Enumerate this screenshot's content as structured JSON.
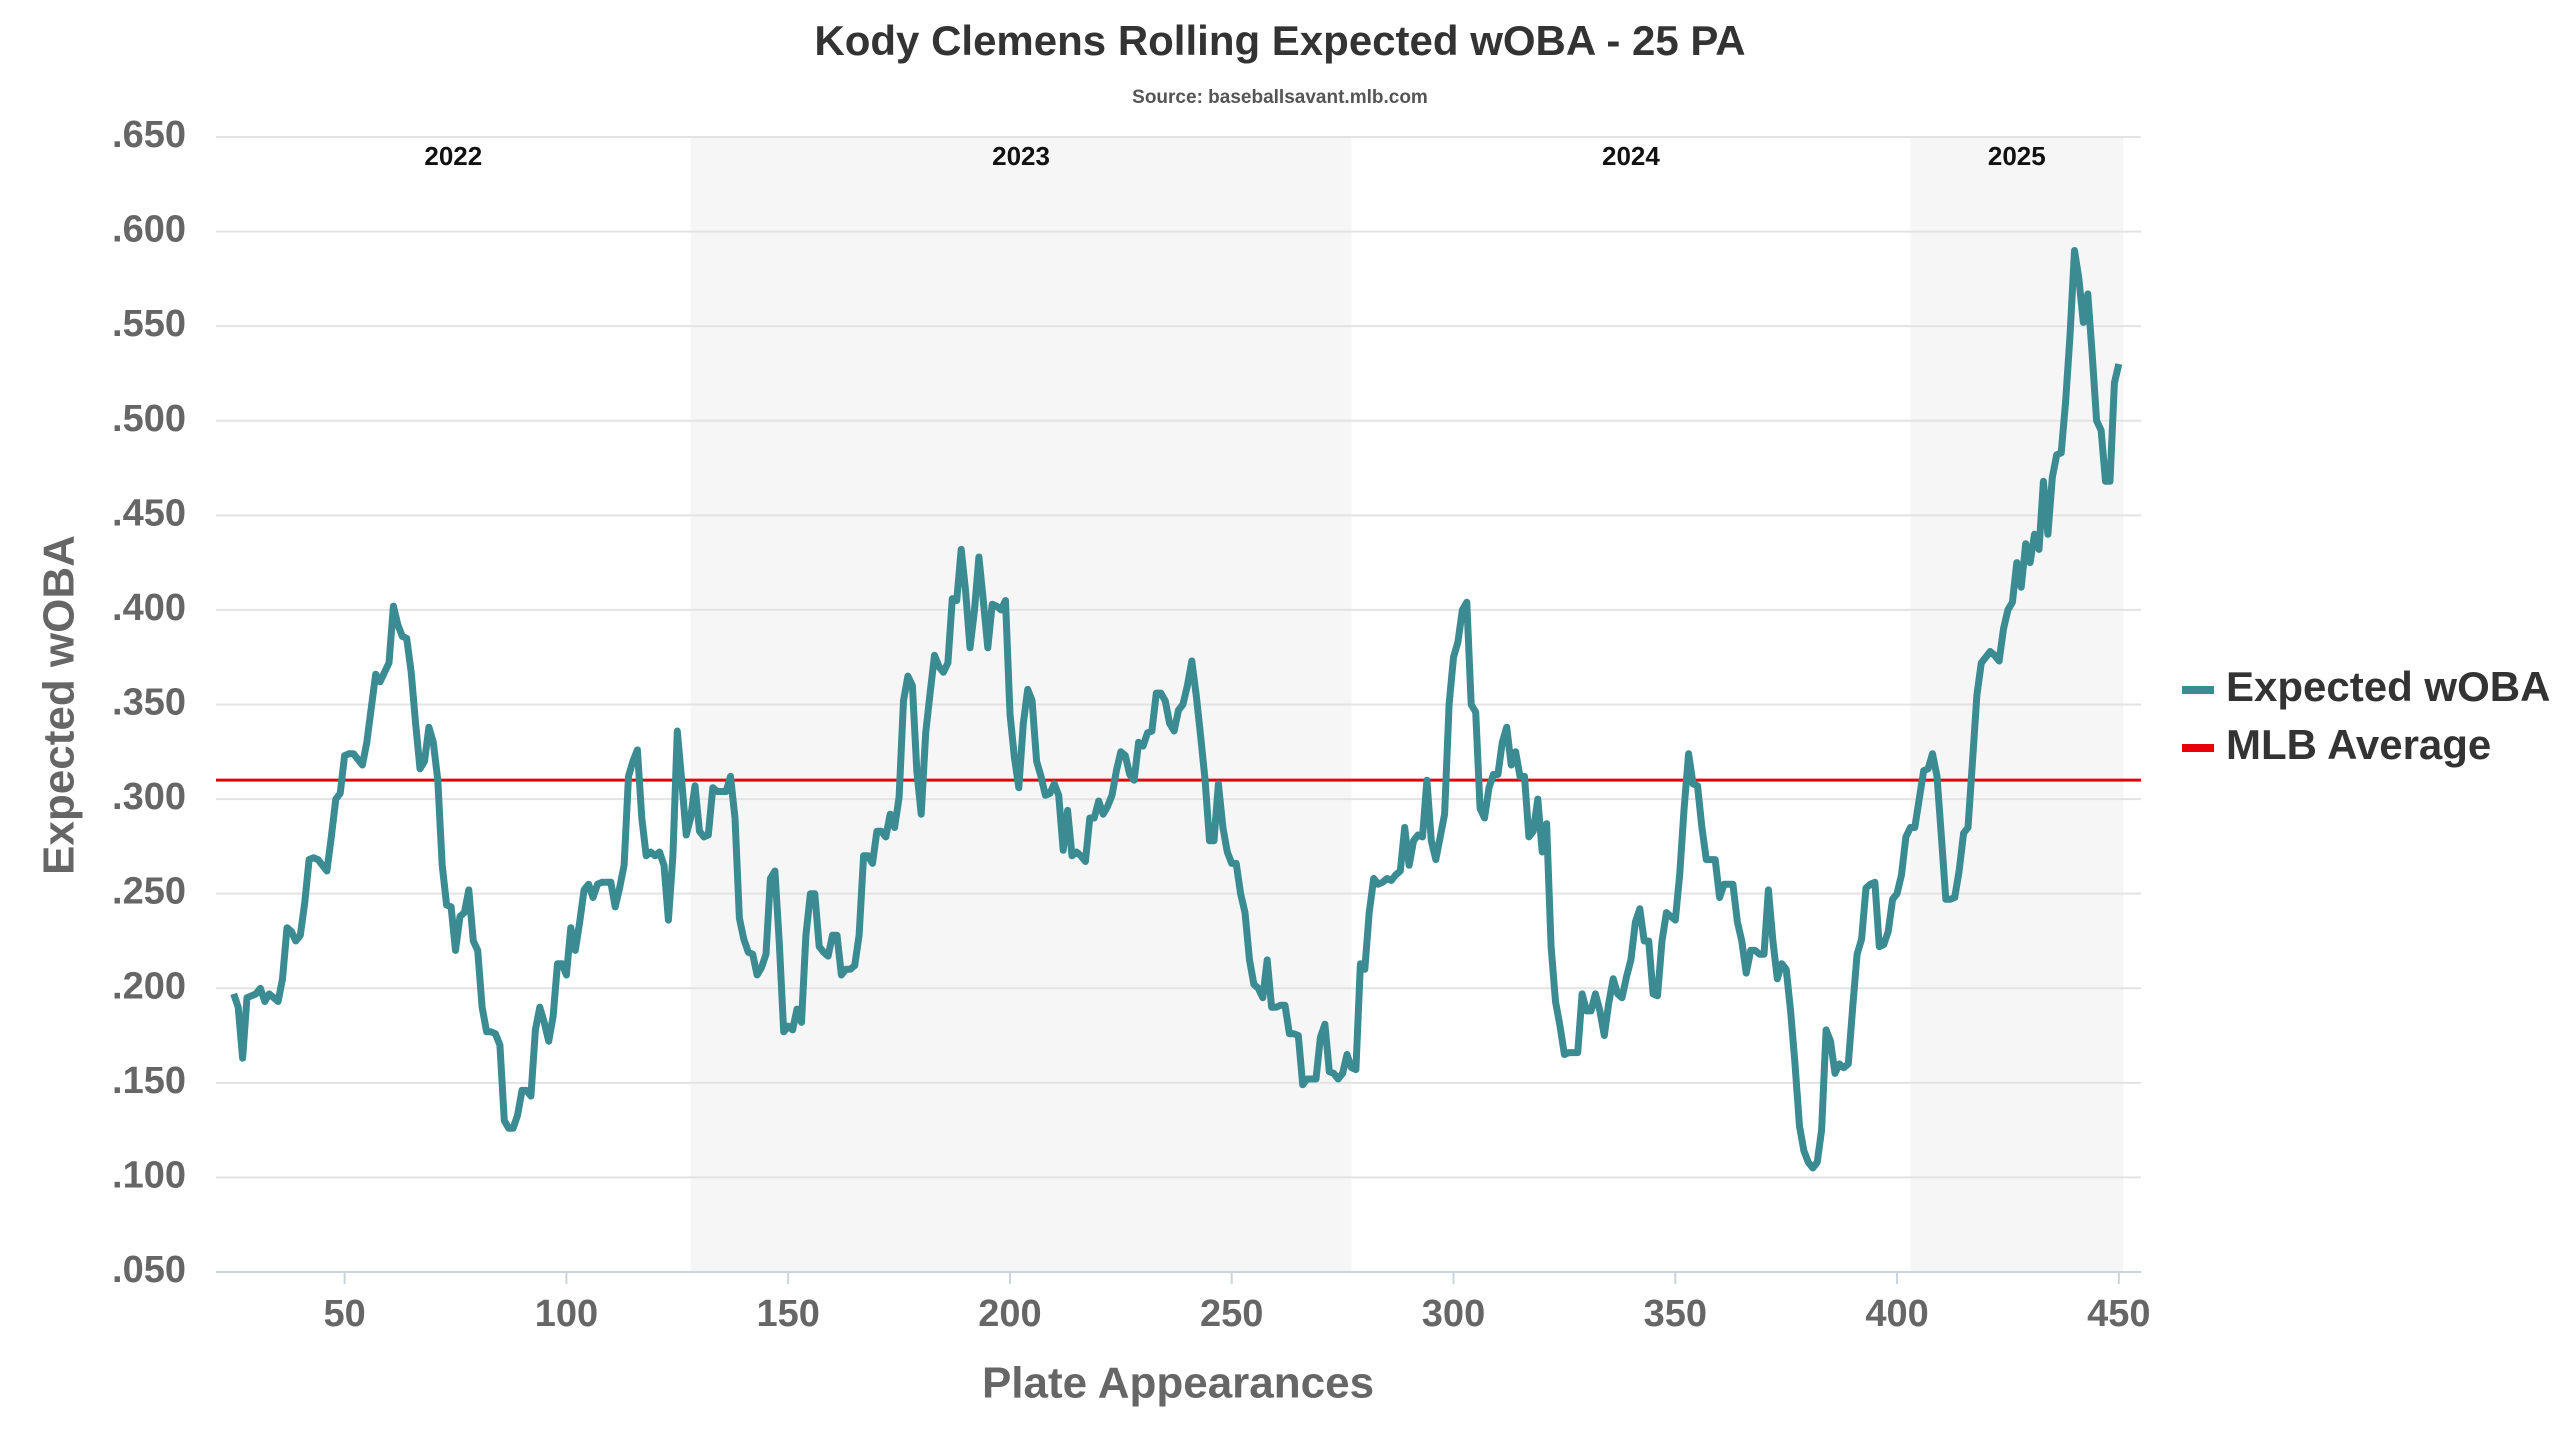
{
  "chart_data": {
    "type": "line",
    "title": "Kody Clemens Rolling Expected wOBA - 25 PA",
    "subtitle": "Source: baseballsavant.mlb.com",
    "xlabel": "Plate Appearances",
    "ylabel": "Expected wOBA",
    "xlim": [
      21,
      455
    ],
    "ylim": [
      0.05,
      0.65
    ],
    "xticks": [
      50,
      100,
      150,
      200,
      250,
      300,
      350,
      400,
      450
    ],
    "yticks": [
      {
        "value": 0.05,
        "label": ".050"
      },
      {
        "value": 0.1,
        "label": ".100"
      },
      {
        "value": 0.15,
        "label": ".150"
      },
      {
        "value": 0.2,
        "label": ".200"
      },
      {
        "value": 0.25,
        "label": ".250"
      },
      {
        "value": 0.3,
        "label": ".300"
      },
      {
        "value": 0.35,
        "label": ".350"
      },
      {
        "value": 0.4,
        "label": ".400"
      },
      {
        "value": 0.45,
        "label": ".450"
      },
      {
        "value": 0.5,
        "label": ".500"
      },
      {
        "value": 0.55,
        "label": ".550"
      },
      {
        "value": 0.6,
        "label": ".600"
      },
      {
        "value": 0.65,
        "label": ".650"
      }
    ],
    "grid": true,
    "legend": "right",
    "seasons": [
      {
        "label": "2022",
        "start": 21,
        "end": 128,
        "shaded": false
      },
      {
        "label": "2023",
        "start": 128,
        "end": 277,
        "shaded": true
      },
      {
        "label": "2024",
        "start": 277,
        "end": 403,
        "shaded": false
      },
      {
        "label": "2025",
        "start": 403,
        "end": 451,
        "shaded": true
      }
    ],
    "reference_lines": [
      {
        "name": "MLB Average",
        "value": 0.31,
        "color": "#e8000b"
      }
    ],
    "x": [
      25,
      26,
      27,
      28,
      29,
      30,
      31,
      32,
      33,
      34,
      35,
      36,
      37,
      38,
      39,
      40,
      41,
      42,
      43,
      44,
      45,
      46,
      47,
      48,
      49,
      50,
      51,
      52,
      53,
      54,
      55,
      56,
      57,
      58,
      59,
      60,
      61,
      62,
      63,
      64,
      65,
      66,
      67,
      68,
      69,
      70,
      71,
      72,
      73,
      74,
      75,
      76,
      77,
      78,
      79,
      80,
      81,
      82,
      83,
      84,
      85,
      86,
      87,
      88,
      89,
      90,
      91,
      92,
      93,
      94,
      95,
      96,
      97,
      98,
      99,
      100,
      101,
      102,
      103,
      104,
      105,
      106,
      107,
      108,
      109,
      110,
      111,
      112,
      113,
      114,
      115,
      116,
      117,
      118,
      119,
      120,
      121,
      122,
      123,
      124,
      125,
      126,
      127,
      128,
      129,
      130,
      131,
      132,
      133,
      134,
      135,
      136,
      137,
      138,
      139,
      140,
      141,
      142,
      143,
      144,
      145,
      146,
      147,
      148,
      149,
      150,
      151,
      152,
      153,
      154,
      155,
      156,
      157,
      158,
      159,
      160,
      161,
      162,
      163,
      164,
      165,
      166,
      167,
      168,
      169,
      170,
      171,
      172,
      173,
      174,
      175,
      176,
      177,
      178,
      179,
      180,
      181,
      182,
      183,
      184,
      185,
      186,
      187,
      188,
      189,
      190,
      191,
      192,
      193,
      194,
      195,
      196,
      197,
      198,
      199,
      200,
      201,
      202,
      203,
      204,
      205,
      206,
      207,
      208,
      209,
      210,
      211,
      212,
      213,
      214,
      215,
      216,
      217,
      218,
      219,
      220,
      221,
      222,
      223,
      224,
      225,
      226,
      227,
      228,
      229,
      230,
      231,
      232,
      233,
      234,
      235,
      236,
      237,
      238,
      239,
      240,
      241,
      242,
      243,
      244,
      245,
      246,
      247,
      248,
      249,
      250,
      251,
      252,
      253,
      254,
      255,
      256,
      257,
      258,
      259,
      260,
      261,
      262,
      263,
      264,
      265,
      266,
      267,
      268,
      269,
      270,
      271,
      272,
      273,
      274,
      275,
      276,
      277,
      278,
      279,
      280,
      281,
      282,
      283,
      284,
      285,
      286,
      287,
      288,
      289,
      290,
      291,
      292,
      293,
      294,
      295,
      296,
      297,
      298,
      299,
      300,
      301,
      302,
      303,
      304,
      305,
      306,
      307,
      308,
      309,
      310,
      311,
      312,
      313,
      314,
      315,
      316,
      317,
      318,
      319,
      320,
      321,
      322,
      323,
      324,
      325,
      326,
      327,
      328,
      329,
      330,
      331,
      332,
      333,
      334,
      335,
      336,
      337,
      338,
      339,
      340,
      341,
      342,
      343,
      344,
      345,
      346,
      347,
      348,
      349,
      350,
      351,
      352,
      353,
      354,
      355,
      356,
      357,
      358,
      359,
      360,
      361,
      362,
      363,
      364,
      365,
      366,
      367,
      368,
      369,
      370,
      371,
      372,
      373,
      374,
      375,
      376,
      377,
      378,
      379,
      380,
      381,
      382,
      383,
      384,
      385,
      386,
      387,
      388,
      389,
      390,
      391,
      392,
      393,
      394,
      395,
      396,
      397,
      398,
      399,
      400,
      401,
      402,
      403,
      404,
      405,
      406,
      407,
      408,
      409,
      410,
      411,
      412,
      413,
      414,
      415,
      416,
      417,
      418,
      419,
      420,
      421,
      422,
      423,
      424,
      425,
      426,
      427,
      428,
      429,
      430,
      431,
      432,
      433,
      434,
      435,
      436,
      437,
      438,
      439,
      440,
      441,
      442,
      443,
      444,
      445,
      446,
      447,
      448,
      449,
      450
    ],
    "series": [
      {
        "name": "Expected wOBA",
        "color": "#3a8c92",
        "values": [
          0.197,
          0.19,
          0.163,
          0.195,
          0.196,
          0.197,
          0.2,
          0.193,
          0.197,
          0.195,
          0.193,
          0.205,
          0.232,
          0.23,
          0.225,
          0.228,
          0.245,
          0.268,
          0.269,
          0.268,
          0.265,
          0.262,
          0.28,
          0.3,
          0.303,
          0.323,
          0.324,
          0.324,
          0.321,
          0.318,
          0.33,
          0.348,
          0.366,
          0.362,
          0.367,
          0.372,
          0.402,
          0.392,
          0.386,
          0.385,
          0.367,
          0.34,
          0.316,
          0.32,
          0.338,
          0.33,
          0.31,
          0.265,
          0.244,
          0.243,
          0.22,
          0.238,
          0.24,
          0.252,
          0.225,
          0.22,
          0.19,
          0.177,
          0.177,
          0.176,
          0.17,
          0.13,
          0.126,
          0.126,
          0.133,
          0.146,
          0.146,
          0.143,
          0.178,
          0.19,
          0.182,
          0.172,
          0.185,
          0.213,
          0.213,
          0.207,
          0.232,
          0.22,
          0.235,
          0.252,
          0.255,
          0.248,
          0.255,
          0.256,
          0.256,
          0.256,
          0.243,
          0.253,
          0.265,
          0.312,
          0.32,
          0.326,
          0.29,
          0.27,
          0.272,
          0.27,
          0.272,
          0.265,
          0.236,
          0.27,
          0.336,
          0.31,
          0.281,
          0.29,
          0.307,
          0.283,
          0.28,
          0.281,
          0.306,
          0.304,
          0.304,
          0.304,
          0.312,
          0.29,
          0.237,
          0.226,
          0.219,
          0.218,
          0.207,
          0.211,
          0.218,
          0.258,
          0.262,
          0.224,
          0.177,
          0.18,
          0.178,
          0.189,
          0.182,
          0.228,
          0.25,
          0.25,
          0.222,
          0.219,
          0.217,
          0.228,
          0.228,
          0.207,
          0.21,
          0.21,
          0.212,
          0.228,
          0.27,
          0.27,
          0.266,
          0.283,
          0.283,
          0.28,
          0.292,
          0.285,
          0.301,
          0.352,
          0.365,
          0.36,
          0.315,
          0.292,
          0.335,
          0.356,
          0.376,
          0.37,
          0.367,
          0.372,
          0.406,
          0.405,
          0.432,
          0.41,
          0.38,
          0.4,
          0.428,
          0.405,
          0.38,
          0.403,
          0.402,
          0.4,
          0.405,
          0.345,
          0.322,
          0.306,
          0.34,
          0.358,
          0.352,
          0.32,
          0.312,
          0.302,
          0.303,
          0.308,
          0.302,
          0.273,
          0.294,
          0.27,
          0.272,
          0.27,
          0.267,
          0.29,
          0.29,
          0.299,
          0.292,
          0.296,
          0.302,
          0.315,
          0.325,
          0.323,
          0.313,
          0.31,
          0.33,
          0.328,
          0.335,
          0.336,
          0.356,
          0.356,
          0.352,
          0.34,
          0.336,
          0.347,
          0.35,
          0.36,
          0.373,
          0.355,
          0.333,
          0.31,
          0.278,
          0.278,
          0.308,
          0.285,
          0.272,
          0.266,
          0.266,
          0.25,
          0.24,
          0.215,
          0.202,
          0.2,
          0.195,
          0.215,
          0.19,
          0.19,
          0.191,
          0.191,
          0.176,
          0.176,
          0.175,
          0.149,
          0.152,
          0.152,
          0.152,
          0.174,
          0.181,
          0.156,
          0.155,
          0.152,
          0.155,
          0.165,
          0.158,
          0.157,
          0.213,
          0.21,
          0.24,
          0.258,
          0.255,
          0.256,
          0.258,
          0.257,
          0.26,
          0.262,
          0.285,
          0.265,
          0.278,
          0.281,
          0.28,
          0.31,
          0.278,
          0.268,
          0.28,
          0.292,
          0.35,
          0.375,
          0.383,
          0.4,
          0.404,
          0.35,
          0.346,
          0.295,
          0.29,
          0.306,
          0.313,
          0.313,
          0.33,
          0.338,
          0.318,
          0.325,
          0.312,
          0.312,
          0.28,
          0.283,
          0.3,
          0.272,
          0.287,
          0.222,
          0.193,
          0.18,
          0.165,
          0.166,
          0.166,
          0.166,
          0.197,
          0.188,
          0.188,
          0.197,
          0.188,
          0.175,
          0.192,
          0.205,
          0.197,
          0.195,
          0.206,
          0.215,
          0.235,
          0.242,
          0.225,
          0.225,
          0.197,
          0.196,
          0.225,
          0.24,
          0.238,
          0.236,
          0.26,
          0.295,
          0.324,
          0.308,
          0.307,
          0.285,
          0.268,
          0.268,
          0.268,
          0.248,
          0.255,
          0.255,
          0.255,
          0.235,
          0.225,
          0.208,
          0.22,
          0.22,
          0.218,
          0.218,
          0.252,
          0.225,
          0.205,
          0.213,
          0.21,
          0.188,
          0.16,
          0.127,
          0.114,
          0.108,
          0.105,
          0.108,
          0.125,
          0.178,
          0.172,
          0.155,
          0.16,
          0.158,
          0.16,
          0.19,
          0.218,
          0.226,
          0.253,
          0.255,
          0.256,
          0.222,
          0.223,
          0.23,
          0.247,
          0.25,
          0.26,
          0.28,
          0.285,
          0.285,
          0.3,
          0.315,
          0.316,
          0.324,
          0.312,
          0.28,
          0.247,
          0.247,
          0.248,
          0.262,
          0.282,
          0.285,
          0.32,
          0.355,
          0.372,
          0.375,
          0.378,
          0.376,
          0.373,
          0.39,
          0.4,
          0.404,
          0.425,
          0.412,
          0.435,
          0.425,
          0.44,
          0.432,
          0.468,
          0.44,
          0.47,
          0.482,
          0.483,
          0.51,
          0.545,
          0.59,
          0.575,
          0.552,
          0.567,
          0.535,
          0.5,
          0.495,
          0.468,
          0.468,
          0.52,
          0.53
        ]
      }
    ]
  }
}
